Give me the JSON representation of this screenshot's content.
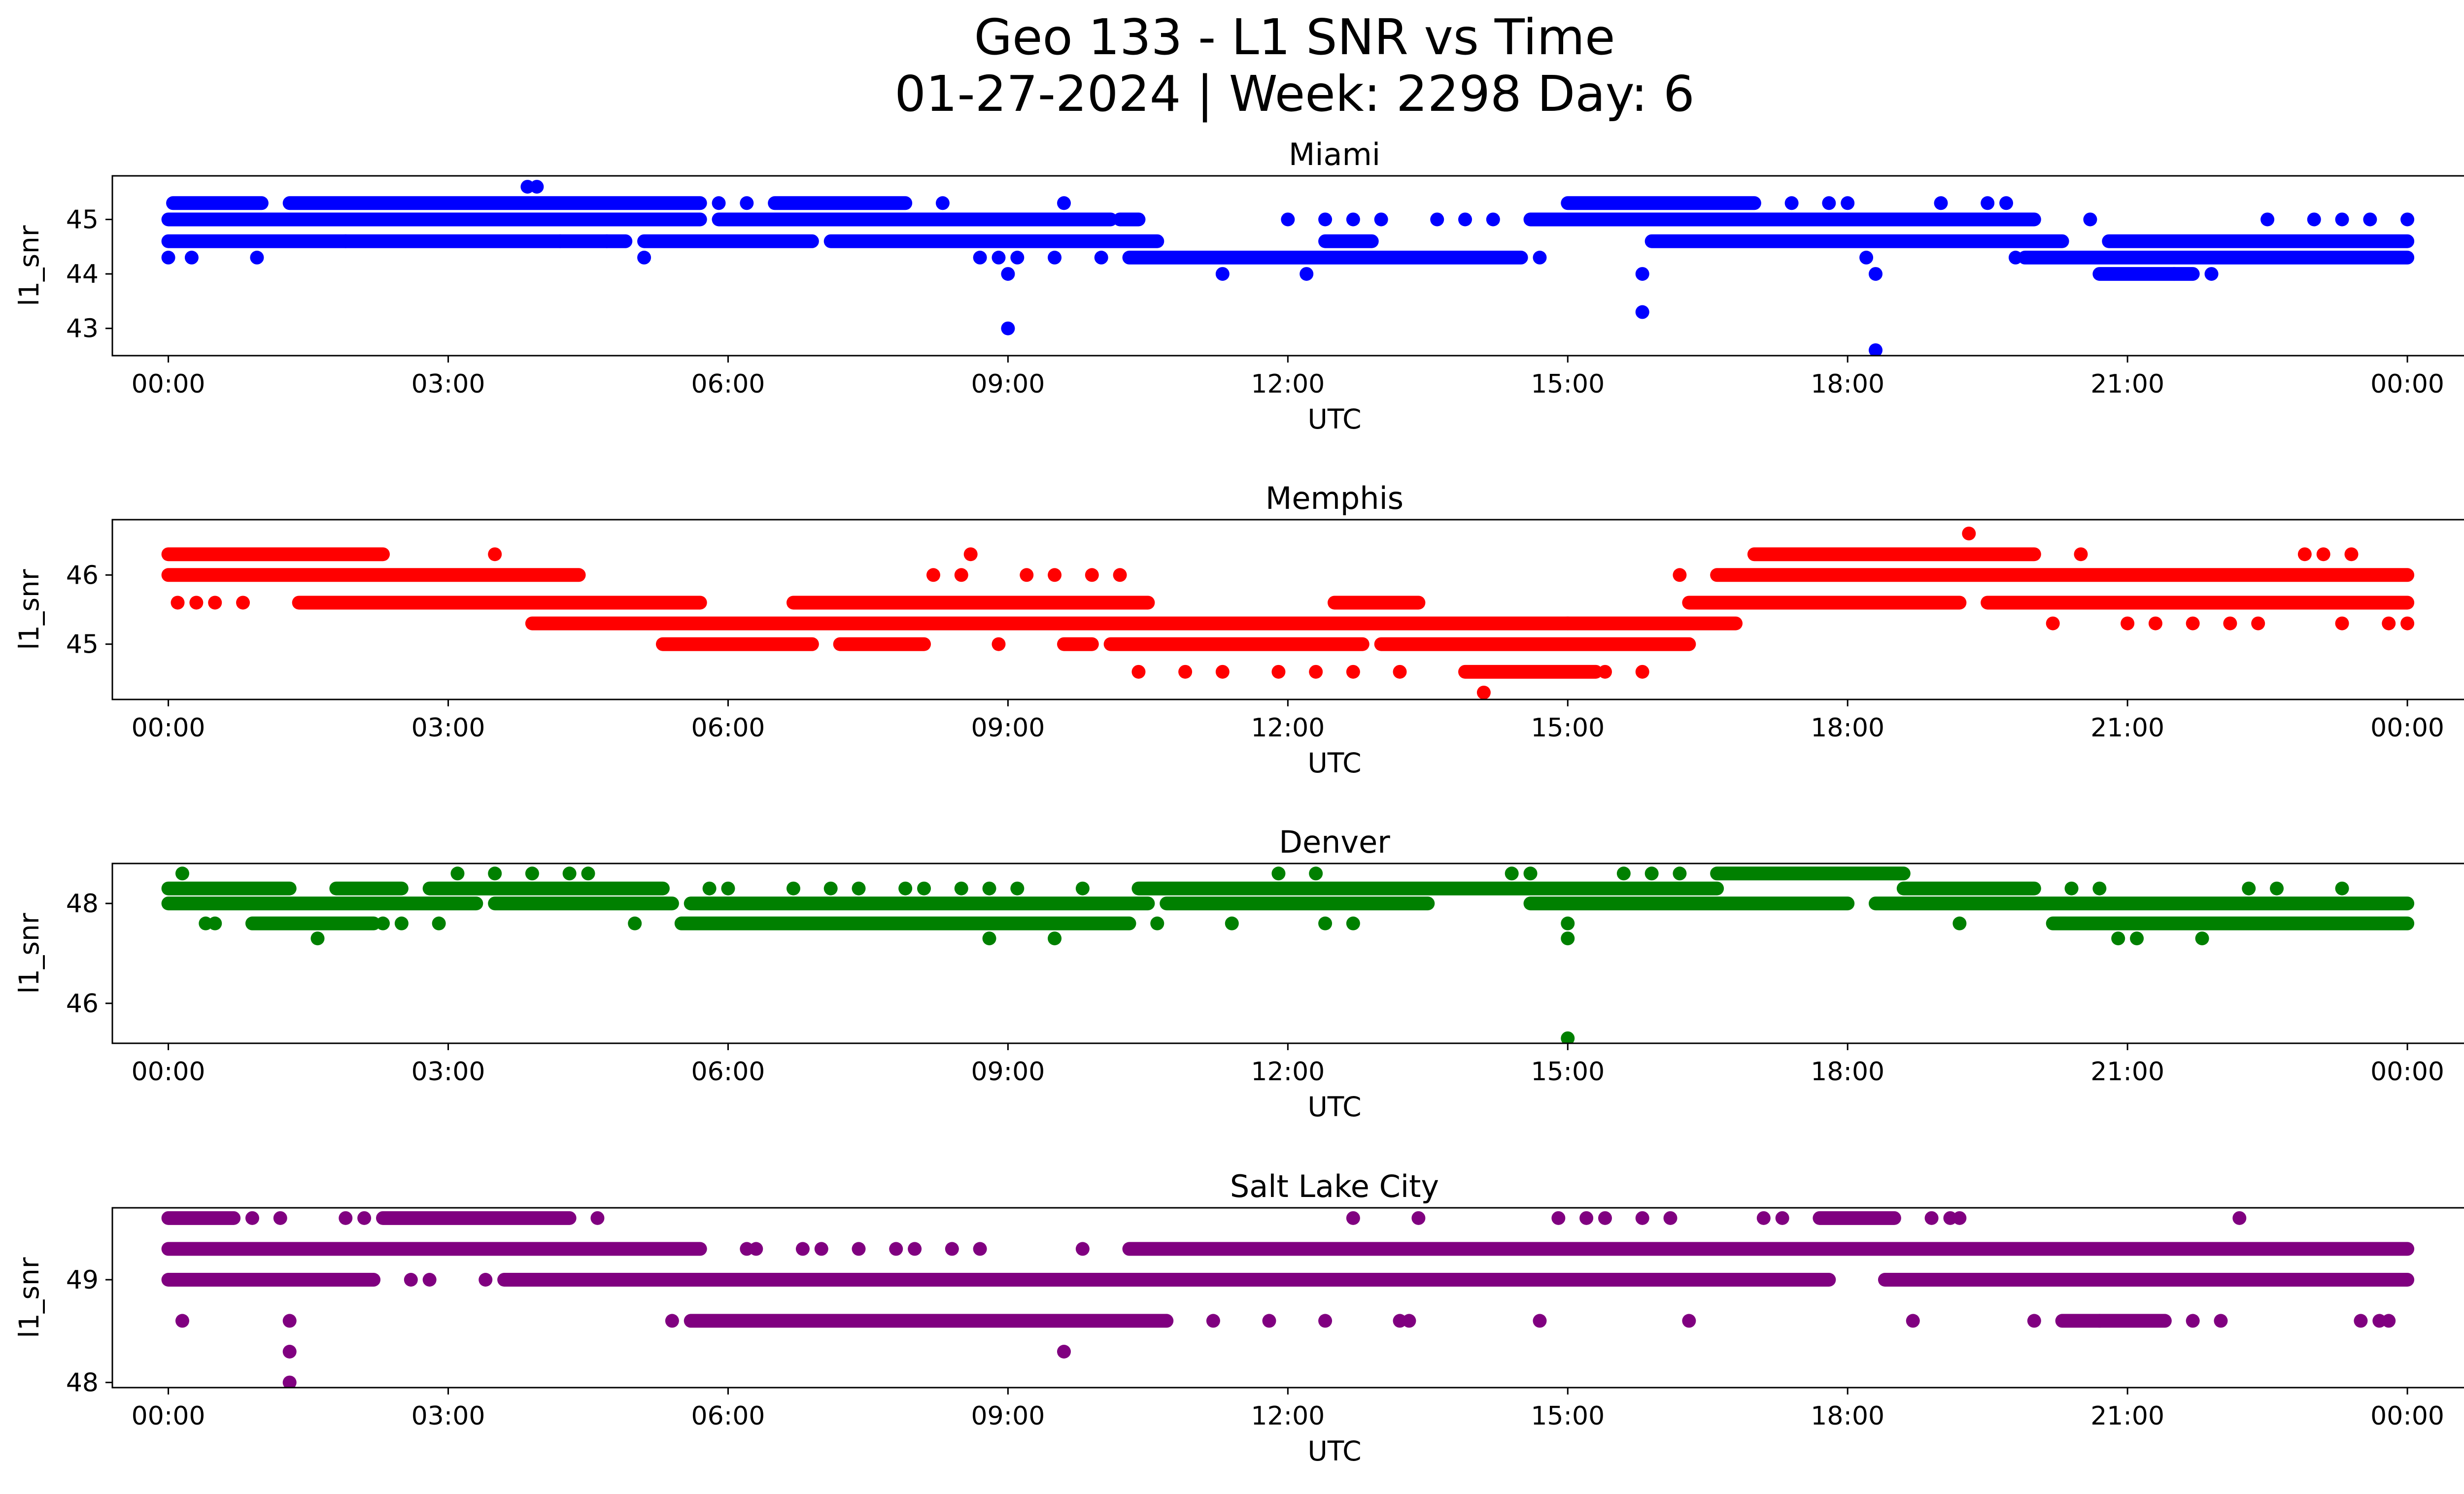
{
  "figure": {
    "title_line1": "Geo 133 - L1 SNR vs Time",
    "title_line2": "01-27-2024 | Week: 2298 Day: 6"
  },
  "chart_data": [
    {
      "type": "scatter",
      "title": "Miami",
      "xlabel": "UTC",
      "ylabel": "l1_snr",
      "color": "#0000ff",
      "xlim_hours": [
        -0.6,
        25.6
      ],
      "ylim": [
        42.5,
        45.8
      ],
      "x_ticks": [
        "00:00",
        "03:00",
        "06:00",
        "09:00",
        "12:00",
        "15:00",
        "18:00",
        "21:00",
        "00:00"
      ],
      "y_ticks": [
        43,
        44,
        45
      ],
      "bands": [
        {
          "y": 45.0,
          "segments": [
            [
              0.0,
              5.7
            ],
            [
              5.9,
              10.1
            ],
            [
              10.2,
              10.4
            ],
            [
              14.6,
              20.0
            ]
          ]
        },
        {
          "y": 44.6,
          "segments": [
            [
              0.0,
              4.9
            ],
            [
              5.1,
              6.9
            ],
            [
              7.1,
              10.6
            ],
            [
              12.4,
              12.9
            ],
            [
              15.9,
              20.3
            ],
            [
              20.8,
              24.0
            ]
          ]
        },
        {
          "y": 45.3,
          "segments": [
            [
              0.05,
              1.0
            ],
            [
              1.3,
              5.7
            ],
            [
              6.5,
              7.9
            ],
            [
              15.0,
              17.0
            ]
          ]
        },
        {
          "y": 44.3,
          "segments": [
            [
              10.3,
              14.5
            ],
            [
              19.9,
              24.0
            ]
          ]
        },
        {
          "y": 44.0,
          "segments": [
            [
              20.7,
              21.7
            ]
          ]
        }
      ],
      "points": [
        [
          0.0,
          44.3
        ],
        [
          0.25,
          44.3
        ],
        [
          0.95,
          44.3
        ],
        [
          5.1,
          44.3
        ],
        [
          8.7,
          44.3
        ],
        [
          8.9,
          44.3
        ],
        [
          9.1,
          44.3
        ],
        [
          9.5,
          44.3
        ],
        [
          10.0,
          44.3
        ],
        [
          14.7,
          44.3
        ],
        [
          19.8,
          44.3
        ],
        [
          18.2,
          44.3
        ],
        [
          3.85,
          45.6
        ],
        [
          3.95,
          45.6
        ],
        [
          5.9,
          45.3
        ],
        [
          6.2,
          45.3
        ],
        [
          8.3,
          45.3
        ],
        [
          9.6,
          45.3
        ],
        [
          17.4,
          45.3
        ],
        [
          17.8,
          45.3
        ],
        [
          19.0,
          45.3
        ],
        [
          19.5,
          45.3
        ],
        [
          19.7,
          45.3
        ],
        [
          18.0,
          45.3
        ],
        [
          9.0,
          44.0
        ],
        [
          11.3,
          44.0
        ],
        [
          12.2,
          44.0
        ],
        [
          15.8,
          44.0
        ],
        [
          18.3,
          44.0
        ],
        [
          21.5,
          44.0
        ],
        [
          21.9,
          44.0
        ],
        [
          9.0,
          43.0
        ],
        [
          15.8,
          43.3
        ],
        [
          18.3,
          42.6
        ],
        [
          12.0,
          45.0
        ],
        [
          12.4,
          45.0
        ],
        [
          12.7,
          45.0
        ],
        [
          13.0,
          45.0
        ],
        [
          13.6,
          45.0
        ],
        [
          13.9,
          45.0
        ],
        [
          14.2,
          45.0
        ],
        [
          17.6,
          45.0
        ],
        [
          20.6,
          45.0
        ],
        [
          22.5,
          45.0
        ],
        [
          23.0,
          45.0
        ],
        [
          23.3,
          45.0
        ],
        [
          23.6,
          45.0
        ],
        [
          24.0,
          45.0
        ],
        [
          1.9,
          44.6
        ],
        [
          4.2,
          44.6
        ],
        [
          4.7,
          44.6
        ]
      ]
    },
    {
      "type": "scatter",
      "title": "Memphis",
      "xlabel": "UTC",
      "ylabel": "l1_snr",
      "color": "#ff0000",
      "xlim_hours": [
        -0.6,
        25.6
      ],
      "ylim": [
        44.2,
        46.8
      ],
      "x_ticks": [
        "00:00",
        "03:00",
        "06:00",
        "09:00",
        "12:00",
        "15:00",
        "18:00",
        "21:00",
        "00:00"
      ],
      "y_ticks": [
        45,
        46
      ],
      "bands": [
        {
          "y": 46.3,
          "segments": [
            [
              0.0,
              2.3
            ],
            [
              17.0,
              20.0
            ]
          ]
        },
        {
          "y": 46.0,
          "segments": [
            [
              0.0,
              4.4
            ],
            [
              16.6,
              24.0
            ]
          ]
        },
        {
          "y": 45.6,
          "segments": [
            [
              1.4,
              5.7
            ],
            [
              6.7,
              10.5
            ],
            [
              12.5,
              13.4
            ],
            [
              16.3,
              19.2
            ],
            [
              19.5,
              24.0
            ]
          ]
        },
        {
          "y": 45.3,
          "segments": [
            [
              3.9,
              15.0
            ],
            [
              15.0,
              16.8
            ]
          ]
        },
        {
          "y": 45.0,
          "segments": [
            [
              5.3,
              6.9
            ],
            [
              7.2,
              8.1
            ],
            [
              9.6,
              9.9
            ],
            [
              10.1,
              12.8
            ],
            [
              13.0,
              16.3
            ]
          ]
        },
        {
          "y": 44.6,
          "segments": [
            [
              13.9,
              15.3
            ]
          ]
        }
      ],
      "points": [
        [
          0.1,
          45.6
        ],
        [
          0.3,
          45.6
        ],
        [
          0.5,
          45.6
        ],
        [
          0.8,
          45.6
        ],
        [
          3.5,
          46.3
        ],
        [
          8.6,
          46.3
        ],
        [
          20.5,
          46.3
        ],
        [
          22.9,
          46.3
        ],
        [
          23.1,
          46.3
        ],
        [
          23.4,
          46.3
        ],
        [
          19.3,
          46.6
        ],
        [
          8.2,
          46.0
        ],
        [
          8.5,
          46.0
        ],
        [
          9.2,
          46.0
        ],
        [
          9.5,
          46.0
        ],
        [
          9.9,
          46.0
        ],
        [
          10.2,
          46.0
        ],
        [
          16.2,
          46.0
        ],
        [
          8.9,
          45.0
        ],
        [
          10.4,
          44.6
        ],
        [
          10.9,
          44.6
        ],
        [
          11.3,
          44.6
        ],
        [
          11.9,
          44.6
        ],
        [
          12.3,
          44.6
        ],
        [
          12.7,
          44.6
        ],
        [
          13.2,
          44.6
        ],
        [
          15.4,
          44.6
        ],
        [
          15.8,
          44.6
        ],
        [
          14.1,
          44.3
        ],
        [
          20.2,
          45.3
        ],
        [
          21.0,
          45.3
        ],
        [
          21.3,
          45.3
        ],
        [
          21.7,
          45.3
        ],
        [
          22.1,
          45.3
        ],
        [
          22.4,
          45.3
        ],
        [
          23.3,
          45.3
        ],
        [
          23.8,
          45.3
        ],
        [
          24.0,
          45.3
        ]
      ]
    },
    {
      "type": "scatter",
      "title": "Denver",
      "xlabel": "UTC",
      "ylabel": "l1_snr",
      "color": "#008000",
      "xlim_hours": [
        -0.6,
        25.6
      ],
      "ylim": [
        45.2,
        48.8
      ],
      "x_ticks": [
        "00:00",
        "03:00",
        "06:00",
        "09:00",
        "12:00",
        "15:00",
        "18:00",
        "21:00",
        "00:00"
      ],
      "y_ticks": [
        46,
        48
      ],
      "bands": [
        {
          "y": 48.0,
          "segments": [
            [
              0.0,
              3.3
            ],
            [
              3.5,
              5.4
            ],
            [
              5.6,
              10.5
            ],
            [
              10.7,
              13.5
            ],
            [
              14.6,
              18.0
            ],
            [
              18.3,
              24.0
            ]
          ]
        },
        {
          "y": 48.3,
          "segments": [
            [
              0.0,
              1.3
            ],
            [
              1.8,
              2.5
            ],
            [
              2.8,
              5.3
            ],
            [
              10.4,
              16.6
            ],
            [
              18.6,
              20.0
            ]
          ]
        },
        {
          "y": 47.6,
          "segments": [
            [
              0.9,
              2.2
            ],
            [
              5.5,
              10.3
            ],
            [
              20.2,
              24.0
            ]
          ]
        },
        {
          "y": 48.6,
          "segments": [
            [
              16.6,
              18.6
            ]
          ]
        }
      ],
      "points": [
        [
          0.15,
          48.6
        ],
        [
          3.1,
          48.6
        ],
        [
          3.5,
          48.6
        ],
        [
          3.9,
          48.6
        ],
        [
          4.3,
          48.6
        ],
        [
          4.5,
          48.6
        ],
        [
          11.9,
          48.6
        ],
        [
          12.3,
          48.6
        ],
        [
          14.4,
          48.6
        ],
        [
          14.6,
          48.6
        ],
        [
          15.6,
          48.6
        ],
        [
          15.9,
          48.6
        ],
        [
          16.2,
          48.6
        ],
        [
          0.4,
          47.6
        ],
        [
          0.5,
          47.6
        ],
        [
          2.3,
          47.6
        ],
        [
          2.5,
          47.6
        ],
        [
          2.9,
          47.6
        ],
        [
          5.0,
          47.6
        ],
        [
          10.6,
          47.6
        ],
        [
          11.4,
          47.6
        ],
        [
          12.4,
          47.6
        ],
        [
          12.7,
          47.6
        ],
        [
          15.0,
          47.6
        ],
        [
          19.2,
          47.6
        ],
        [
          1.6,
          47.3
        ],
        [
          8.8,
          47.3
        ],
        [
          9.5,
          47.3
        ],
        [
          15.0,
          47.3
        ],
        [
          20.9,
          47.3
        ],
        [
          21.1,
          47.3
        ],
        [
          21.8,
          47.3
        ],
        [
          15.0,
          45.3
        ],
        [
          5.8,
          48.3
        ],
        [
          6.0,
          48.3
        ],
        [
          6.7,
          48.3
        ],
        [
          7.1,
          48.3
        ],
        [
          7.4,
          48.3
        ],
        [
          7.9,
          48.3
        ],
        [
          8.1,
          48.3
        ],
        [
          8.5,
          48.3
        ],
        [
          8.8,
          48.3
        ],
        [
          9.1,
          48.3
        ],
        [
          9.8,
          48.3
        ],
        [
          20.4,
          48.3
        ],
        [
          20.7,
          48.3
        ],
        [
          22.3,
          48.3
        ],
        [
          22.6,
          48.3
        ],
        [
          23.3,
          48.3
        ]
      ]
    },
    {
      "type": "scatter",
      "title": "Salt Lake City",
      "xlabel": "UTC",
      "ylabel": "l1_snr",
      "color": "#800080",
      "xlim_hours": [
        -0.6,
        25.6
      ],
      "ylim": [
        47.95,
        49.7
      ],
      "x_ticks": [
        "00:00",
        "03:00",
        "06:00",
        "09:00",
        "12:00",
        "15:00",
        "18:00",
        "21:00",
        "00:00"
      ],
      "y_ticks": [
        48,
        49
      ],
      "bands": [
        {
          "y": 49.3,
          "segments": [
            [
              0.0,
              5.7
            ],
            [
              10.3,
              24.0
            ]
          ]
        },
        {
          "y": 49.0,
          "segments": [
            [
              0.0,
              2.2
            ],
            [
              3.6,
              17.8
            ],
            [
              18.4,
              24.0
            ]
          ]
        },
        {
          "y": 48.6,
          "segments": [
            [
              5.6,
              10.7
            ],
            [
              20.3,
              21.4
            ]
          ]
        },
        {
          "y": 49.6,
          "segments": [
            [
              0.0,
              0.7
            ],
            [
              2.3,
              4.3
            ],
            [
              17.7,
              18.5
            ]
          ]
        }
      ],
      "points": [
        [
          0.15,
          48.6
        ],
        [
          1.3,
          48.6
        ],
        [
          1.3,
          48.3
        ],
        [
          1.3,
          48.0
        ],
        [
          9.6,
          48.3
        ],
        [
          5.4,
          48.6
        ],
        [
          11.2,
          48.6
        ],
        [
          11.8,
          48.6
        ],
        [
          12.4,
          48.6
        ],
        [
          13.2,
          48.6
        ],
        [
          13.3,
          48.6
        ],
        [
          14.7,
          48.6
        ],
        [
          16.3,
          48.6
        ],
        [
          18.7,
          48.6
        ],
        [
          20.0,
          48.6
        ],
        [
          20.7,
          48.6
        ],
        [
          21.7,
          48.6
        ],
        [
          22.0,
          48.6
        ],
        [
          23.5,
          48.6
        ],
        [
          23.7,
          48.6
        ],
        [
          23.8,
          48.6
        ],
        [
          0.9,
          49.6
        ],
        [
          1.2,
          49.6
        ],
        [
          1.9,
          49.6
        ],
        [
          2.1,
          49.6
        ],
        [
          4.6,
          49.6
        ],
        [
          12.7,
          49.6
        ],
        [
          13.4,
          49.6
        ],
        [
          14.9,
          49.6
        ],
        [
          15.2,
          49.6
        ],
        [
          15.4,
          49.6
        ],
        [
          15.8,
          49.6
        ],
        [
          16.1,
          49.6
        ],
        [
          17.1,
          49.6
        ],
        [
          17.3,
          49.6
        ],
        [
          18.9,
          49.6
        ],
        [
          19.1,
          49.6
        ],
        [
          19.2,
          49.6
        ],
        [
          22.2,
          49.6
        ],
        [
          2.6,
          49.0
        ],
        [
          2.8,
          49.0
        ],
        [
          3.4,
          49.0
        ],
        [
          19.0,
          49.0
        ],
        [
          6.2,
          49.3
        ],
        [
          6.3,
          49.3
        ],
        [
          6.8,
          49.3
        ],
        [
          7.0,
          49.3
        ],
        [
          7.4,
          49.3
        ],
        [
          7.8,
          49.3
        ],
        [
          8.0,
          49.3
        ],
        [
          8.4,
          49.3
        ],
        [
          8.7,
          49.3
        ],
        [
          9.8,
          49.3
        ]
      ]
    }
  ]
}
